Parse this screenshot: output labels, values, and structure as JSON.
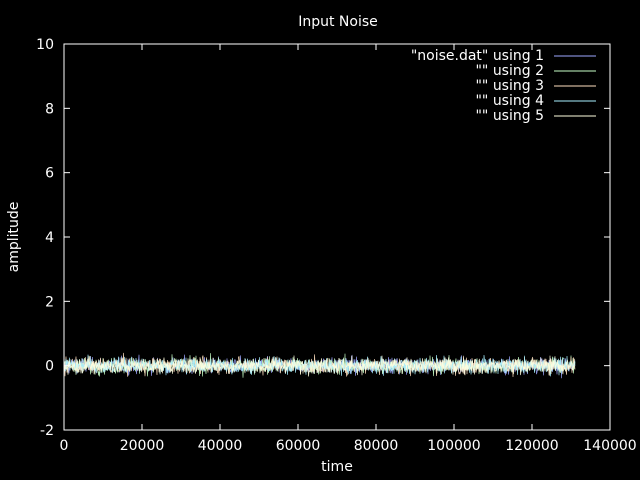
{
  "chart_data": {
    "type": "line",
    "title": "Input Noise",
    "xlabel": "time",
    "ylabel": "amplitude",
    "xlim": [
      0,
      140000
    ],
    "ylim": [
      -2,
      10
    ],
    "xticks": [
      0,
      20000,
      40000,
      60000,
      80000,
      100000,
      120000,
      140000
    ],
    "yticks": [
      -2,
      0,
      2,
      4,
      6,
      8,
      10
    ],
    "grid": false,
    "legend_position": "top-right",
    "series": [
      {
        "name": "\"noise.dat\" using 1",
        "color": "#9ea7ff",
        "x_range": [
          0,
          131072
        ],
        "mean": 0,
        "spread": 0.5
      },
      {
        "name": "\"\" using 2",
        "color": "#c8ffc8",
        "x_range": [
          0,
          131072
        ],
        "mean": 0,
        "spread": 0.5
      },
      {
        "name": "\"\" using 3",
        "color": "#ffe0c0",
        "x_range": [
          0,
          131072
        ],
        "mean": 0,
        "spread": 0.5
      },
      {
        "name": "\"\" using 4",
        "color": "#a8f0ff",
        "x_range": [
          0,
          131072
        ],
        "mean": 0,
        "spread": 0.5
      },
      {
        "name": "\"\" using 5",
        "color": "#ffffe0",
        "x_range": [
          0,
          131072
        ],
        "mean": 0,
        "spread": 0.5
      }
    ]
  }
}
